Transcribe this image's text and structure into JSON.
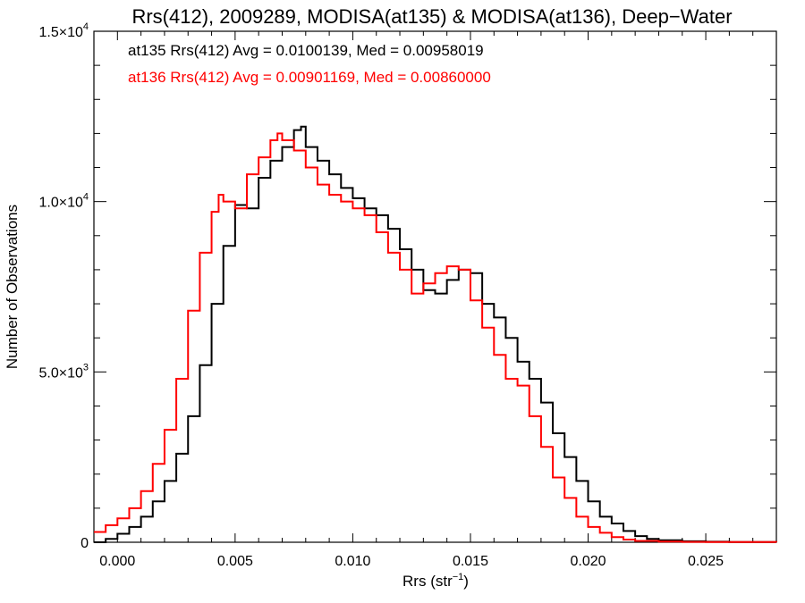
{
  "chart_data": {
    "type": "line",
    "title": "Rrs(412), 2009289, MODISA(at135) & MODISA(at136), Deep−Water",
    "xlabel": "Rrs (str",
    "xlabel_sup": "−1",
    "xlabel_tail": ")",
    "ylabel": "Number of Observations",
    "xlim": [
      -0.001,
      0.028
    ],
    "ylim": [
      0,
      15000
    ],
    "grid": false,
    "x_ticks": [
      0.0,
      0.005,
      0.01,
      0.015,
      0.02,
      0.025
    ],
    "x_tick_labels": [
      "0.000",
      "0.005",
      "0.010",
      "0.015",
      "0.020",
      "0.025"
    ],
    "y_ticks": [
      {
        "value": 0,
        "mant": "0",
        "exp": ""
      },
      {
        "value": 5000,
        "mant": "5.0×10",
        "exp": "3"
      },
      {
        "value": 10000,
        "mant": "1.0×10",
        "exp": "4"
      },
      {
        "value": 15000,
        "mant": "1.5×10",
        "exp": "4"
      }
    ],
    "annotations": [
      {
        "text": "at135 Rrs(412) Avg = 0.0100139, Med = 0.00958019",
        "color": "#000000"
      },
      {
        "text": "at136 Rrs(412) Avg = 0.00901169, Med = 0.00860000",
        "color": "#ff0000"
      }
    ],
    "series": [
      {
        "name": "at135",
        "color": "#000000",
        "x": [
          -0.001,
          -0.0005,
          0.0,
          0.0005,
          0.001,
          0.0015,
          0.002,
          0.0025,
          0.003,
          0.0035,
          0.004,
          0.0045,
          0.005,
          0.0055,
          0.006,
          0.0065,
          0.007,
          0.0075,
          0.0078,
          0.008,
          0.0085,
          0.009,
          0.0095,
          0.01,
          0.0105,
          0.011,
          0.0115,
          0.012,
          0.0125,
          0.013,
          0.0135,
          0.014,
          0.0145,
          0.015,
          0.0155,
          0.016,
          0.0165,
          0.017,
          0.0175,
          0.018,
          0.0185,
          0.019,
          0.0195,
          0.02,
          0.0205,
          0.021,
          0.0215,
          0.022,
          0.0225,
          0.023,
          0.024,
          0.025,
          0.026,
          0.028
        ],
        "y": [
          0,
          100,
          250,
          450,
          750,
          1200,
          1800,
          2600,
          3700,
          5200,
          7000,
          8700,
          9900,
          9800,
          10700,
          11200,
          11600,
          12100,
          12200,
          11600,
          11200,
          10800,
          10400,
          10100,
          9800,
          9600,
          9200,
          8600,
          8000,
          7400,
          7300,
          7700,
          8000,
          7900,
          7000,
          6600,
          6000,
          5300,
          4800,
          4100,
          3200,
          2500,
          1800,
          1200,
          750,
          550,
          330,
          180,
          100,
          60,
          30,
          15,
          5,
          0
        ]
      },
      {
        "name": "at136",
        "color": "#ff0000",
        "x": [
          -0.001,
          -0.0005,
          0.0,
          0.0005,
          0.001,
          0.0015,
          0.002,
          0.0025,
          0.003,
          0.0035,
          0.004,
          0.0043,
          0.0045,
          0.005,
          0.0055,
          0.006,
          0.0065,
          0.0068,
          0.007,
          0.0075,
          0.008,
          0.0085,
          0.009,
          0.0095,
          0.01,
          0.0105,
          0.011,
          0.0115,
          0.012,
          0.0125,
          0.013,
          0.0135,
          0.014,
          0.0145,
          0.015,
          0.0155,
          0.016,
          0.0165,
          0.017,
          0.0175,
          0.018,
          0.0185,
          0.019,
          0.0195,
          0.02,
          0.0205,
          0.021,
          0.0215,
          0.022,
          0.023,
          0.024,
          0.025,
          0.028
        ],
        "y": [
          300,
          500,
          700,
          1000,
          1500,
          2300,
          3300,
          4800,
          6800,
          8500,
          9700,
          10200,
          10000,
          9800,
          10800,
          11300,
          11800,
          12000,
          11800,
          11500,
          11000,
          10500,
          10200,
          10000,
          9800,
          9600,
          9100,
          8500,
          8000,
          7300,
          7600,
          7900,
          8100,
          8000,
          7100,
          6300,
          5500,
          4800,
          4600,
          3700,
          2800,
          1900,
          1300,
          750,
          450,
          280,
          150,
          80,
          40,
          20,
          10,
          5,
          0
        ]
      }
    ]
  }
}
